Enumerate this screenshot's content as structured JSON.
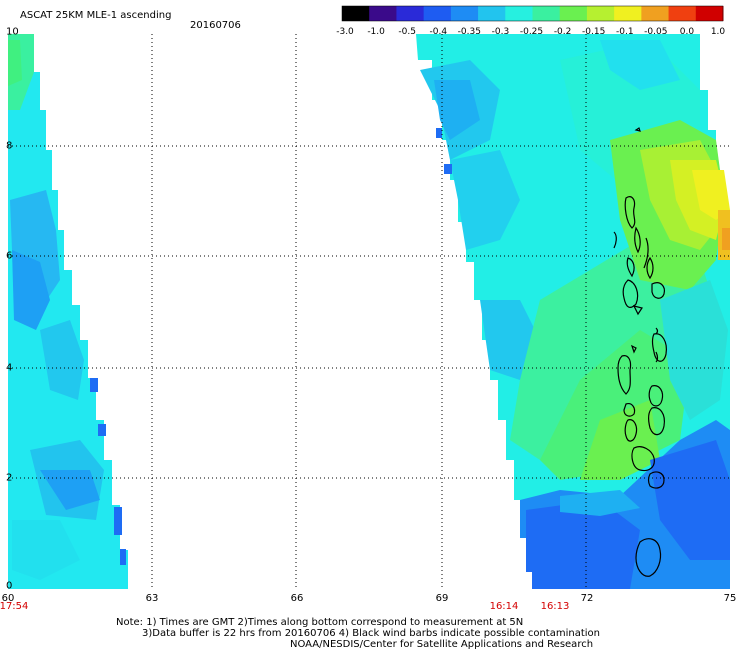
{
  "header": {
    "title": "ASCAT 25KM MLE-1 ascending",
    "date": "20160706"
  },
  "colorbar": {
    "labels": [
      "-3.0",
      "-1.0",
      "-0.5",
      "-0.4",
      "-0.35",
      "-0.3",
      "-0.25",
      "-0.2",
      "-0.15",
      "-0.1",
      "-0.05",
      "0.0",
      "1.0"
    ],
    "colors": [
      "#000000",
      "#3a0a8a",
      "#2a2ad8",
      "#1e5cf2",
      "#1e8cf4",
      "#22c4ee",
      "#26f0e0",
      "#3af0a0",
      "#6af050",
      "#b6f030",
      "#f0f020",
      "#f0a020",
      "#f04010",
      "#d00000"
    ]
  },
  "axes": {
    "x_labels": [
      "60",
      "63",
      "66",
      "69",
      "72",
      "75"
    ],
    "y_labels": [
      "0",
      "2",
      "4",
      "6",
      "8",
      "10"
    ],
    "x_range": [
      60,
      75
    ],
    "y_range": [
      0,
      10
    ],
    "grid": true
  },
  "times": {
    "left_swath": "17:54",
    "right_swath_1": "16:14",
    "right_swath_2": "16:13"
  },
  "notes": {
    "line1": "Note: 1) Times are GMT 2)Times along bottom correspond to measurement at 5N",
    "line2": "3)Data buffer is 22 hrs from 20160706 4) Black wind barbs indicate possible contamination",
    "line3": "NOAA/NESDIS/Center for Satellite Applications and Research"
  },
  "palette": {
    "cyan": "#22f0e6",
    "teal": "#20d2f0",
    "mid_blue": "#1ea0f4",
    "blue": "#1e6cf4",
    "green": "#3af08a",
    "lime": "#8cf040",
    "yellow": "#e6f020",
    "orange": "#f0a020"
  }
}
